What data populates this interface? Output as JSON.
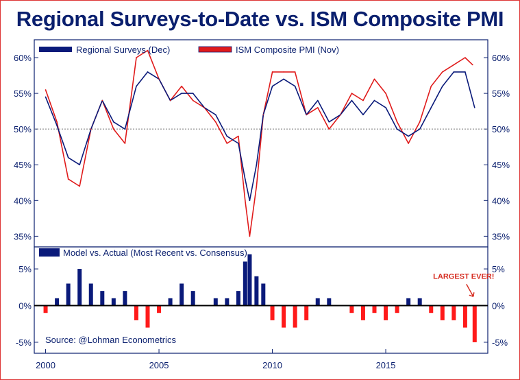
{
  "title": "Regional Surveys-to-Date vs. ISM Composite PMI",
  "colors": {
    "regional": "#0a1a7a",
    "ism": "#e01b1b",
    "bar_pos": "#0a1a7a",
    "bar_neg": "#ff1a1a",
    "axis": "#0a1f6e",
    "annotation": "#d62a1e"
  },
  "chart_data": [
    {
      "type": "line",
      "title": "Regional Surveys-to-Date vs. ISM Composite PMI",
      "legend_position": "top-left",
      "y_unit": "%",
      "ylim": [
        33.5,
        62.5
      ],
      "y_ticks": [
        35,
        40,
        45,
        50,
        55,
        60
      ],
      "y_tick_labels": [
        "35%",
        "40%",
        "45%",
        "50%",
        "55%",
        "60%"
      ],
      "reference_line": 50,
      "xlim": [
        1999.5,
        2019.5
      ],
      "x_ticks": [
        2000,
        2005,
        2010,
        2015
      ],
      "x_tick_labels": [
        "2000",
        "2005",
        "2010",
        "2015"
      ],
      "series": [
        {
          "name": "Regional Surveys (Dec)",
          "x": [
            2000.0,
            2000.5,
            2001.0,
            2001.5,
            2002.0,
            2002.5,
            2003.0,
            2003.5,
            2004.0,
            2004.5,
            2005.0,
            2005.5,
            2006.0,
            2006.5,
            2007.0,
            2007.5,
            2008.0,
            2008.5,
            2008.8,
            2009.0,
            2009.3,
            2009.6,
            2010.0,
            2010.5,
            2011.0,
            2011.5,
            2012.0,
            2012.5,
            2013.0,
            2013.5,
            2014.0,
            2014.5,
            2015.0,
            2015.5,
            2016.0,
            2016.5,
            2017.0,
            2017.5,
            2018.0,
            2018.5,
            2018.92
          ],
          "y": [
            54.5,
            50.5,
            46,
            45,
            50,
            54,
            51,
            50,
            56,
            58,
            57,
            54,
            55,
            55,
            53,
            52,
            49,
            48,
            43,
            40,
            45,
            52,
            56,
            57,
            56,
            52,
            54,
            51,
            52,
            54,
            52,
            54,
            53,
            50,
            49,
            50,
            53,
            56,
            58,
            58,
            53
          ]
        },
        {
          "name": "ISM Composite PMI (Nov)",
          "x": [
            2000.0,
            2000.5,
            2001.0,
            2001.5,
            2002.0,
            2002.5,
            2003.0,
            2003.5,
            2004.0,
            2004.5,
            2005.0,
            2005.5,
            2006.0,
            2006.5,
            2007.0,
            2007.5,
            2008.0,
            2008.5,
            2008.8,
            2009.0,
            2009.3,
            2009.6,
            2010.0,
            2010.5,
            2011.0,
            2011.5,
            2012.0,
            2012.5,
            2013.0,
            2013.5,
            2014.0,
            2014.5,
            2015.0,
            2015.5,
            2016.0,
            2016.5,
            2017.0,
            2017.5,
            2018.0,
            2018.5,
            2018.83
          ],
          "y": [
            55.5,
            51,
            43,
            42,
            50,
            54,
            50,
            48,
            60,
            61,
            57,
            54,
            56,
            54,
            53,
            51,
            48,
            49,
            40,
            35,
            42,
            52,
            58,
            58,
            58,
            52,
            53,
            50,
            52,
            55,
            54,
            57,
            55,
            51,
            48,
            51,
            56,
            58,
            59,
            60,
            59
          ]
        }
      ]
    },
    {
      "type": "bar",
      "legend_position": "top-left",
      "y_unit": "%",
      "ylim": [
        -6.5,
        8.0
      ],
      "y_ticks": [
        -5,
        0,
        5
      ],
      "y_tick_labels": [
        "-5%",
        "0%",
        "5%"
      ],
      "xlim": [
        1999.5,
        2019.5
      ],
      "series": [
        {
          "name": "Model vs. Actual (Most Recent vs. Consensus)",
          "x": [
            2000.0,
            2000.5,
            2001.0,
            2001.5,
            2002.0,
            2002.5,
            2003.0,
            2003.5,
            2004.0,
            2004.5,
            2005.0,
            2005.5,
            2006.0,
            2006.5,
            2007.0,
            2007.5,
            2008.0,
            2008.5,
            2008.8,
            2009.0,
            2009.3,
            2009.6,
            2010.0,
            2010.5,
            2011.0,
            2011.5,
            2012.0,
            2012.5,
            2013.0,
            2013.5,
            2014.0,
            2014.5,
            2015.0,
            2015.5,
            2016.0,
            2016.5,
            2017.0,
            2017.5,
            2018.0,
            2018.5,
            2018.92
          ],
          "values": [
            -1,
            1,
            3,
            5,
            3,
            2,
            1,
            2,
            -2,
            -3,
            -1,
            1,
            3,
            2,
            0,
            1,
            1,
            2,
            6,
            7,
            4,
            3,
            -2,
            -3,
            -3,
            -2,
            1,
            1,
            0,
            -1,
            -2,
            -1,
            -2,
            -1,
            1,
            1,
            -1,
            -2,
            -2,
            -3,
            -5
          ]
        }
      ],
      "annotation": {
        "text": "LARGEST EVER!",
        "x": 2018.92,
        "y": 0.3
      }
    }
  ],
  "source": "Source: @Lohman Econometrics"
}
